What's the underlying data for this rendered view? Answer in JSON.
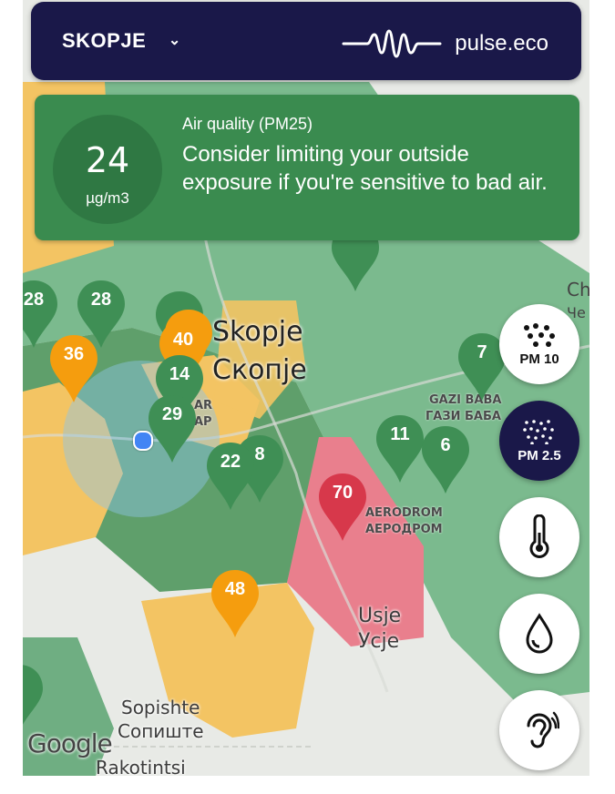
{
  "header": {
    "city": "SKOPJE",
    "brand": "pulse.eco"
  },
  "air_quality": {
    "value": "24",
    "unit": "µg/m3",
    "title": "Air quality (PM25)",
    "message": "Consider limiting your outside exposure if you're sensitive to bad air."
  },
  "map": {
    "city_latin": "Skopje",
    "city_cyrillic": "Скопје",
    "labels": {
      "gazi_baba": "GAZI BABA",
      "gazi_baba_cyr": "ГАЗИ БАБА",
      "aerodrom": "AERODROM",
      "aerodrom_cyr": "АЕРОДРОМ",
      "usje": "Usje",
      "usje_cyr": "Усје",
      "sopishte": "Sopishte",
      "sopishte_cyr": "Сопиште",
      "rakotintsi": "Rakotintsi",
      "attribution": "Google",
      "edge_ch": "Ch",
      "edge_che": "Че",
      "ar": "AR",
      "ap": "AP"
    },
    "sensors": [
      {
        "id": "s28a",
        "value": "28",
        "color": "#3f8f55"
      },
      {
        "id": "s28b",
        "value": "28",
        "color": "#3f8f55"
      },
      {
        "id": "s36",
        "value": "36",
        "color": "#f59d0e"
      },
      {
        "id": "s40",
        "value": "40",
        "color": "#f59d0e"
      },
      {
        "id": "s14",
        "value": "14",
        "color": "#3f8f55"
      },
      {
        "id": "s29",
        "value": "29",
        "color": "#3f8f55"
      },
      {
        "id": "s22",
        "value": "22",
        "color": "#3f8f55"
      },
      {
        "id": "s8",
        "value": "8",
        "color": "#3f8f55"
      },
      {
        "id": "s70",
        "value": "70",
        "color": "#d7384b"
      },
      {
        "id": "s48",
        "value": "48",
        "color": "#f59d0e"
      },
      {
        "id": "s11",
        "value": "11",
        "color": "#3f8f55"
      },
      {
        "id": "s6",
        "value": "6",
        "color": "#3f8f55"
      },
      {
        "id": "s7",
        "value": "7",
        "color": "#3f8f55"
      }
    ]
  },
  "controls": {
    "pm10": "PM 10",
    "pm25": "PM 2.5",
    "temperature_icon": "thermometer-icon",
    "humidity_icon": "droplet-icon",
    "noise_icon": "ear-icon"
  },
  "colors": {
    "header_bg": "#1a1849",
    "good": "#3f8f55",
    "moderate": "#f59d0e",
    "bad": "#d7384b",
    "card_bg": "#3a8b4f"
  }
}
